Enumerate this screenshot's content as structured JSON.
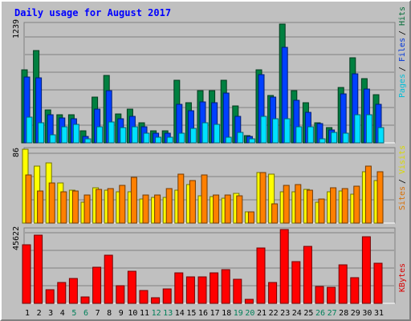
{
  "chart_data": [
    {
      "panel": "pages-files-hits",
      "type": "bar",
      "title": "Daily usage for August 2017",
      "categories": [
        "1",
        "2",
        "3",
        "4",
        "5",
        "6",
        "7",
        "8",
        "9",
        "10",
        "11",
        "12",
        "13",
        "14",
        "15",
        "16",
        "17",
        "18",
        "19",
        "20",
        "21",
        "22",
        "23",
        "24",
        "25",
        "26",
        "27",
        "28",
        "29",
        "30",
        "31"
      ],
      "weekend_days": [
        "5",
        "6",
        "12",
        "13",
        "19",
        "20",
        "26",
        "27"
      ],
      "ymax_label": "1239",
      "ylim": [
        0,
        1239
      ],
      "legend": [
        "Pages",
        "Files",
        "Hits"
      ],
      "colors": {
        "Hits": "#008040",
        "Files": "#0040ff",
        "Pages": "#00e0ff"
      },
      "series": [
        {
          "name": "Hits",
          "values": [
            766,
            965,
            343,
            293,
            293,
            124,
            478,
            700,
            305,
            350,
            211,
            124,
            124,
            650,
            422,
            543,
            540,
            650,
            387,
            77,
            766,
            498,
            1239,
            540,
            422,
            210,
            159,
            580,
            884,
            670,
            499
          ]
        },
        {
          "name": "Files",
          "values": [
            689,
            682,
            293,
            256,
            250,
            70,
            350,
            540,
            250,
            275,
            170,
            100,
            100,
            400,
            335,
            425,
            420,
            518,
            280,
            65,
            715,
            480,
            1000,
            440,
            320,
            200,
            130,
            510,
            720,
            560,
            402
          ]
        },
        {
          "name": "Pages",
          "values": [
            267,
            210,
            85,
            170,
            190,
            40,
            170,
            220,
            160,
            170,
            100,
            60,
            55,
            100,
            150,
            210,
            190,
            60,
            110,
            40,
            280,
            250,
            250,
            170,
            170,
            40,
            110,
            100,
            290,
            290,
            160
          ]
        }
      ]
    },
    {
      "panel": "sites-visits",
      "type": "bar",
      "categories": [
        "1",
        "2",
        "3",
        "4",
        "5",
        "6",
        "7",
        "8",
        "9",
        "10",
        "11",
        "12",
        "13",
        "14",
        "15",
        "16",
        "17",
        "18",
        "19",
        "20",
        "21",
        "22",
        "23",
        "24",
        "25",
        "26",
        "27",
        "28",
        "29",
        "30",
        "31"
      ],
      "ymax_label": "86",
      "ylim": [
        0,
        86
      ],
      "legend": [
        "Sites",
        "Visits"
      ],
      "colors": {
        "Visits": "#ffff00",
        "Sites": "#ff8000"
      },
      "series": [
        {
          "name": "Visits",
          "values": [
            86,
            66,
            70,
            47,
            38,
            24,
            41,
            38,
            36,
            36,
            28,
            30,
            30,
            38,
            45,
            32,
            31,
            29,
            35,
            13,
            59,
            57,
            36,
            36,
            39,
            24,
            36,
            37,
            34,
            60,
            50
          ]
        },
        {
          "name": "Sites",
          "values": [
            56,
            37,
            47,
            36,
            37,
            33,
            39,
            40,
            44,
            53,
            33,
            33,
            40,
            57,
            50,
            56,
            33,
            33,
            32,
            13,
            59,
            22,
            44,
            45,
            38,
            28,
            41,
            40,
            43,
            66,
            60
          ]
        }
      ]
    },
    {
      "panel": "kbytes",
      "type": "bar",
      "categories": [
        "1",
        "2",
        "3",
        "4",
        "5",
        "6",
        "7",
        "8",
        "9",
        "10",
        "11",
        "12",
        "13",
        "14",
        "15",
        "16",
        "17",
        "18",
        "19",
        "20",
        "21",
        "22",
        "23",
        "24",
        "25",
        "26",
        "27",
        "28",
        "29",
        "30",
        "31"
      ],
      "ymax_label": "45622",
      "ylim": [
        0,
        45622
      ],
      "legend": [
        "KBytes"
      ],
      "colors": {
        "KBytes": "#ff0000"
      },
      "series": [
        {
          "name": "KBytes",
          "values": [
            36000,
            42000,
            8200,
            13000,
            15500,
            3800,
            22500,
            30000,
            11000,
            20000,
            8000,
            3600,
            8800,
            19000,
            16500,
            16500,
            19000,
            21000,
            15000,
            2500,
            34000,
            13000,
            45622,
            26000,
            35000,
            10500,
            10000,
            24000,
            16000,
            41000,
            25000
          ]
        }
      ]
    }
  ]
}
